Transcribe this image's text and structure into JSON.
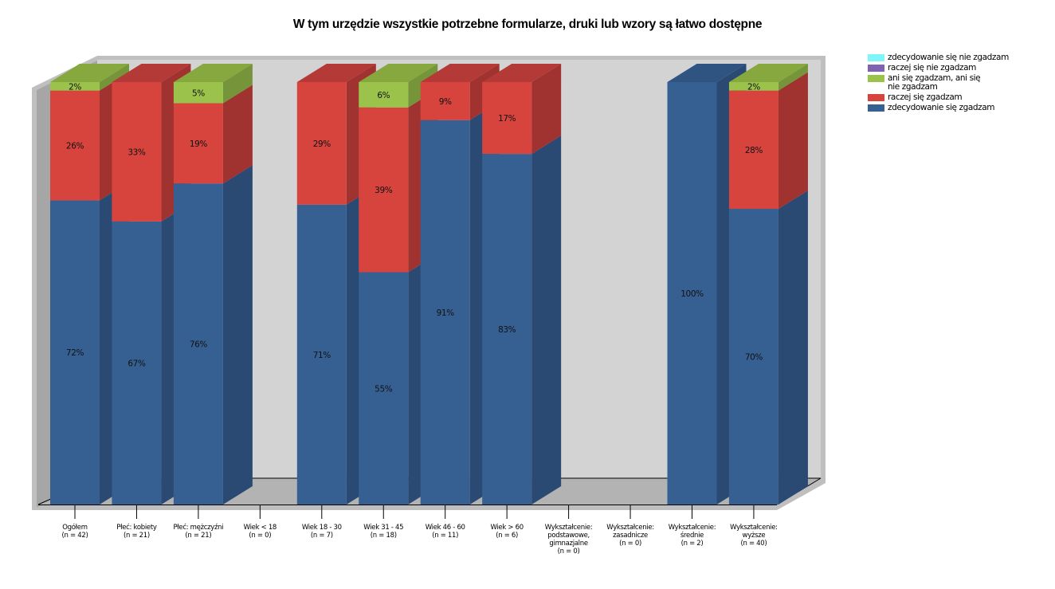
{
  "chart_data": {
    "type": "bar",
    "stacked": true,
    "three_d": true,
    "title": "W tym urzędzie wszystkie potrzebne formularze, druki lub wzory są łatwo dostępne",
    "xlabel": "",
    "ylabel": "",
    "ylim": [
      0,
      100
    ],
    "grid": false,
    "legend_position": "top-right",
    "categories": [
      "Ogółem\n(n = 42)",
      "Płeć: kobiety\n(n = 21)",
      "Płeć: mężczyźni\n(n = 21)",
      "Wiek < 18\n(n = 0)",
      "Wiek 18 - 30\n(n = 7)",
      "Wiek 31 - 45\n(n = 18)",
      "Wiek 46 - 60\n(n = 11)",
      "Wiek > 60\n(n = 6)",
      "Wykształcenie:\npodstawowe,\ngimnazjalne\n(n = 0)",
      "Wykształcenie:\nzasadnicze\n(n = 0)",
      "Wykształcenie:\nśrednie\n(n = 2)",
      "Wykształcenie:\nwyższe\n(n = 40)"
    ],
    "series": [
      {
        "name": "zdecydowanie się zgadzam",
        "color": "#376092",
        "side_color": "#2b4a73",
        "top_color": "#2f5482",
        "values": [
          72,
          67,
          76,
          0,
          71,
          55,
          91,
          83,
          0,
          0,
          100,
          70
        ]
      },
      {
        "name": "raczej się zgadzam",
        "color": "#d7443e",
        "side_color": "#a03230",
        "top_color": "#b43a37",
        "values": [
          26,
          33,
          19,
          0,
          29,
          39,
          9,
          17,
          0,
          0,
          0,
          28
        ]
      },
      {
        "name": "ani się zgadzam, ani się nie zgadzam",
        "color": "#9bc34b",
        "side_color": "#76943a",
        "top_color": "#86a83f",
        "values": [
          2,
          0,
          5,
          0,
          0,
          6,
          0,
          0,
          0,
          0,
          0,
          2
        ]
      },
      {
        "name": "raczej się nie zgadzam",
        "color": "#7f62b0",
        "side_color": "#634c8a",
        "top_color": "#6f569a",
        "values": [
          0,
          0,
          0,
          0,
          0,
          0,
          0,
          0,
          0,
          0,
          0,
          0
        ]
      },
      {
        "name": "zdecydowanie się nie zgadzam",
        "color": "#7ff5f8",
        "side_color": "#60c0c2",
        "top_color": "#6fdadd",
        "values": [
          0,
          0,
          0,
          0,
          0,
          0,
          0,
          0,
          0,
          0,
          0,
          0
        ]
      }
    ],
    "data_label_format": "{v}%"
  },
  "legend": {
    "items": [
      {
        "label": "zdecydowanie się nie zgadzam",
        "color": "#7ff5f8"
      },
      {
        "label": "raczej się nie zgadzam",
        "color": "#7f62b0"
      },
      {
        "label": "ani się zgadzam, ani się nie zgadzam",
        "color": "#9bc34b"
      },
      {
        "label": "raczej się zgadzam",
        "color": "#d7443e"
      },
      {
        "label": "zdecydowanie się zgadzam",
        "color": "#376092"
      }
    ]
  },
  "colors": {
    "back_wall": "#d3d3d3",
    "side_wall": "#a6a6a6",
    "floor": "#b3b3b3",
    "wall_edge": "#bfbfbf"
  }
}
